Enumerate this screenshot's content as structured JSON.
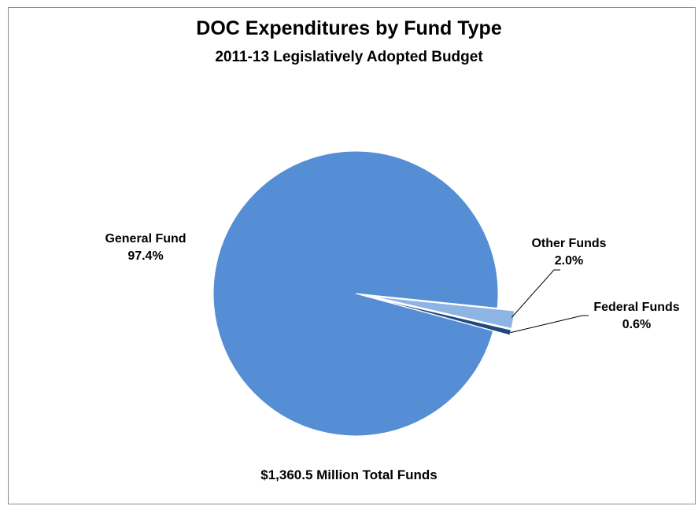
{
  "chart_data": {
    "type": "pie",
    "title": "DOC Expenditures by Fund Type",
    "subtitle": "2011-13 Legislatively Adopted Budget",
    "footnote": "$1,360.5 Million Total Funds",
    "slices": [
      {
        "name": "General Fund",
        "value": 97.4,
        "value_label": "97.4%",
        "color": "#558ED5",
        "exploded": false
      },
      {
        "name": "Other Funds",
        "value": 2.0,
        "value_label": "2.0%",
        "color": "#8EB4E3",
        "exploded": true
      },
      {
        "name": "Federal Funds",
        "value": 0.6,
        "value_label": "0.6%",
        "color": "#1F497D",
        "exploded": true
      }
    ]
  }
}
